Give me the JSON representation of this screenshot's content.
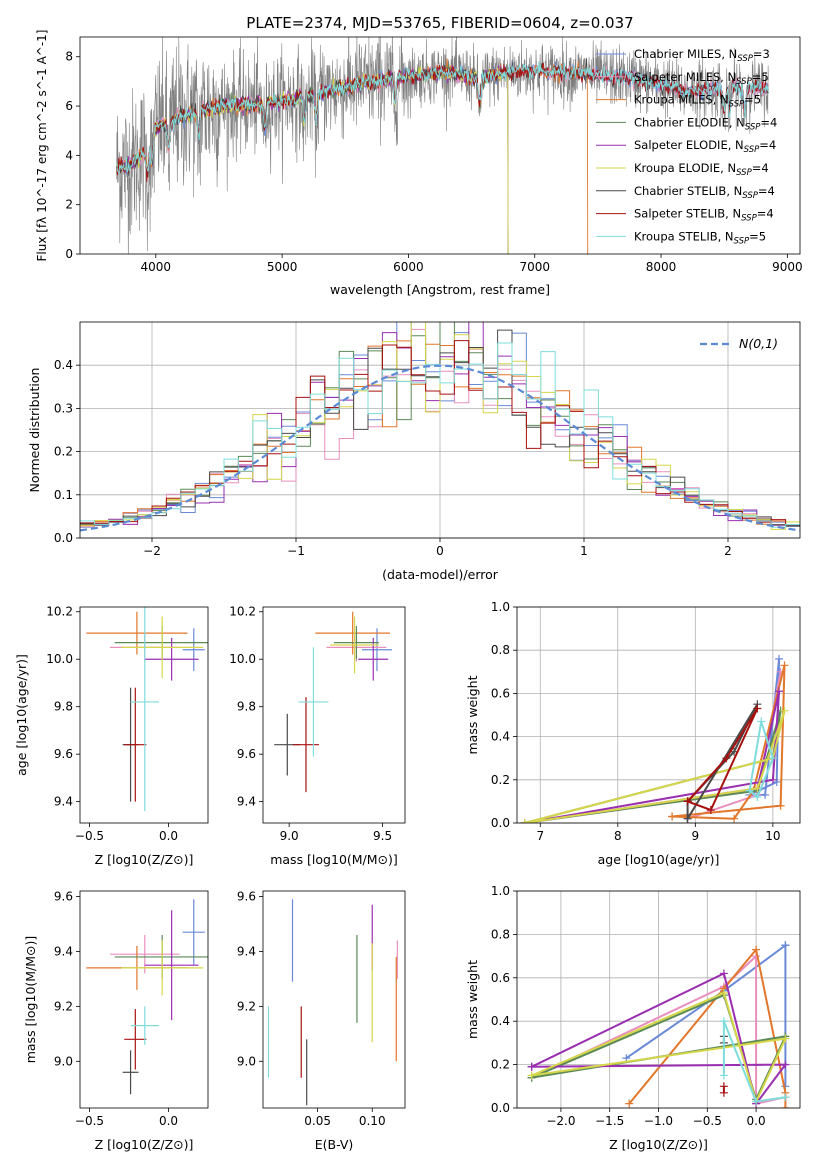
{
  "figure": {
    "title": "PLATE=2374, MJD=53765, FIBERID=0604, z=0.037"
  },
  "series": [
    {
      "name": "Chabrier MILES, N_SSP=3",
      "color": "#6a8ad8"
    },
    {
      "name": "Salpeter MILES, N_SSP=5",
      "color": "#e88fbf"
    },
    {
      "name": "Kroupa MILES, N_SSP=5",
      "color": "#e2762a"
    },
    {
      "name": "Chabrier ELODIE, N_SSP=4",
      "color": "#5a8a55"
    },
    {
      "name": "Salpeter ELODIE, N_SSP=4",
      "color": "#9a2fb0"
    },
    {
      "name": "Kroupa ELODIE, N_SSP=4",
      "color": "#d6d64a"
    },
    {
      "name": "Chabrier STELIB, N_SSP=4",
      "color": "#4a4a4a"
    },
    {
      "name": "Salpeter STELIB, N_SSP=4",
      "color": "#a81010"
    },
    {
      "name": "Kroupa STELIB, N_SSP=5",
      "color": "#7fdcdc"
    }
  ],
  "legend_entries": [
    {
      "base": "Chabrier MILES, N",
      "sub": "SSP",
      "tail": "=3"
    },
    {
      "base": "Salpeter MILES, N",
      "sub": "SSP",
      "tail": "=5"
    },
    {
      "base": "Kroupa MILES, N",
      "sub": "SSP",
      "tail": "=5"
    },
    {
      "base": "Chabrier ELODIE, N",
      "sub": "SSP",
      "tail": "=4"
    },
    {
      "base": "Salpeter ELODIE, N",
      "sub": "SSP",
      "tail": "=4"
    },
    {
      "base": "Kroupa ELODIE, N",
      "sub": "SSP",
      "tail": "=4"
    },
    {
      "base": "Chabrier STELIB, N",
      "sub": "SSP",
      "tail": "=4"
    },
    {
      "base": "Salpeter STELIB, N",
      "sub": "SSP",
      "tail": "=4"
    },
    {
      "base": "Kroupa STELIB, N",
      "sub": "SSP",
      "tail": "=5"
    }
  ],
  "chart_data": [
    {
      "id": "spectrum",
      "type": "line",
      "xlabel": "wavelength [Angstrom, rest frame]",
      "ylabel": "Flux [fλ 10^-17 erg cm^-2 s^-1 A^-1]",
      "xlim": [
        3400,
        9100
      ],
      "ylim": [
        0,
        8.8
      ],
      "xticks": [
        4000,
        5000,
        6000,
        7000,
        8000,
        9000
      ],
      "yticks": [
        0,
        2,
        4,
        6,
        8
      ],
      "grid": false,
      "legend": "top-right",
      "data_color": "#808080",
      "data_range": [
        3690,
        8850
      ],
      "model_ranges": [
        [
          3690,
          8850
        ],
        [
          3690,
          8850
        ],
        [
          3690,
          7420
        ],
        [
          3690,
          6790
        ],
        [
          3690,
          6790
        ],
        [
          3690,
          6790
        ],
        [
          3690,
          8850
        ],
        [
          3690,
          8850
        ],
        [
          3690,
          8850
        ]
      ],
      "continuum_knots": [
        [
          3690,
          3.5
        ],
        [
          3800,
          3.6
        ],
        [
          3930,
          4.2
        ],
        [
          4000,
          5.1
        ],
        [
          4200,
          5.6
        ],
        [
          4500,
          6.0
        ],
        [
          4860,
          6.1
        ],
        [
          5200,
          6.4
        ],
        [
          5600,
          6.9
        ],
        [
          6000,
          7.2
        ],
        [
          6300,
          7.4
        ],
        [
          6563,
          7.1
        ],
        [
          6800,
          7.4
        ],
        [
          7000,
          7.4
        ],
        [
          7400,
          7.3
        ],
        [
          7800,
          7.1
        ],
        [
          8200,
          6.6
        ],
        [
          8600,
          6.8
        ],
        [
          8850,
          6.7
        ]
      ]
    },
    {
      "id": "residuals",
      "type": "histogram",
      "xlabel": "(data-model)/error",
      "ylabel": "Normed distribution",
      "xlim": [
        -2.5,
        2.5
      ],
      "ylim": [
        0,
        0.5
      ],
      "xticks": [
        -2,
        -1,
        0,
        1,
        2
      ],
      "yticks": [
        0.0,
        0.1,
        0.2,
        0.3,
        0.4
      ],
      "bin_width": 0.1,
      "grid": true,
      "legend": "top-right",
      "reference_curve": {
        "label": "N(0,1)",
        "mean": 0,
        "sigma": 1,
        "color": "#5b8bd6"
      }
    },
    {
      "id": "age-vs-Z",
      "type": "errorbar",
      "xlabel": "Z [log10(Z/Z⊙)]",
      "ylabel": "age  [log10(age/yr)]",
      "xlim": [
        -0.56,
        0.25
      ],
      "ylim": [
        9.31,
        10.22
      ],
      "xticks": [
        -0.5,
        0.0
      ],
      "yticks": [
        9.4,
        9.6,
        9.8,
        10.0,
        10.2
      ],
      "points": [
        {
          "x": 0.16,
          "y": 10.04,
          "xerr": 0.07,
          "yerr": 0.09
        },
        {
          "x": -0.15,
          "y": 10.05,
          "xerr": 0.22,
          "yerr": 0.06
        },
        {
          "x": -0.2,
          "y": 10.11,
          "xerr": 0.32,
          "yerr": 0.09
        },
        {
          "x": -0.04,
          "y": 10.07,
          "xerr": 0.3,
          "yerr": 0.07
        },
        {
          "x": 0.02,
          "y": 10.0,
          "xerr": 0.17,
          "yerr": 0.09
        },
        {
          "x": -0.04,
          "y": 10.05,
          "xerr": 0.26,
          "yerr": 0.13
        },
        {
          "x": -0.24,
          "y": 9.64,
          "xerr": 0.05,
          "yerr": 0.24
        },
        {
          "x": -0.21,
          "y": 9.64,
          "xerr": 0.07,
          "yerr": 0.24
        },
        {
          "x": -0.15,
          "y": 9.82,
          "xerr": 0.09,
          "yerr": 0.46
        }
      ]
    },
    {
      "id": "age-vs-mass",
      "type": "errorbar",
      "xlabel": "mass [log10(M/M⊙)]",
      "ylabel": "",
      "xlim": [
        8.86,
        9.62
      ],
      "ylim": [
        9.31,
        10.22
      ],
      "xticks": [
        9.0,
        9.5
      ],
      "yticks": [
        9.4,
        9.6,
        9.8,
        10.0,
        10.2
      ],
      "points": [
        {
          "x": 9.47,
          "y": 10.04,
          "xerr": 0.08,
          "yerr": 0.09
        },
        {
          "x": 9.36,
          "y": 10.05,
          "xerr": 0.16,
          "yerr": 0.06
        },
        {
          "x": 9.34,
          "y": 10.11,
          "xerr": 0.2,
          "yerr": 0.09
        },
        {
          "x": 9.36,
          "y": 10.07,
          "xerr": 0.12,
          "yerr": 0.07
        },
        {
          "x": 9.45,
          "y": 10.0,
          "xerr": 0.08,
          "yerr": 0.09
        },
        {
          "x": 9.35,
          "y": 10.06,
          "xerr": 0.13,
          "yerr": 0.12
        },
        {
          "x": 8.99,
          "y": 9.64,
          "xerr": 0.07,
          "yerr": 0.13
        },
        {
          "x": 9.09,
          "y": 9.64,
          "xerr": 0.07,
          "yerr": 0.2
        },
        {
          "x": 9.13,
          "y": 9.82,
          "xerr": 0.08,
          "yerr": 0.23
        }
      ]
    },
    {
      "id": "weight-vs-age",
      "type": "line",
      "xlabel": "age  [log10(age/yr)]",
      "ylabel": "mass weight",
      "xlim": [
        6.7,
        10.35
      ],
      "ylim": [
        0.0,
        1.0
      ],
      "xticks": [
        7,
        8,
        9,
        10
      ],
      "yticks": [
        0.0,
        0.2,
        0.4,
        0.6,
        0.8,
        1.0
      ],
      "grid": true,
      "lines": [
        [
          [
            9.7,
            0.13
          ],
          [
            10.05,
            0.19
          ],
          [
            10.08,
            0.76
          ],
          [
            9.9,
            0.13
          ],
          [
            9.7,
            0.13
          ]
        ],
        [
          [
            8.9,
            0.02
          ],
          [
            9.8,
            0.13
          ],
          [
            10.1,
            0.7
          ],
          [
            9.8,
            0.13
          ],
          [
            8.9,
            0.02
          ]
        ],
        [
          [
            8.7,
            0.03
          ],
          [
            9.5,
            0.02
          ],
          [
            9.75,
            0.15
          ],
          [
            10.15,
            0.73
          ],
          [
            10.1,
            0.08
          ],
          [
            8.7,
            0.03
          ]
        ],
        [
          [
            6.8,
            0.0
          ],
          [
            9.8,
            0.15
          ],
          [
            10.1,
            0.52
          ],
          [
            10.0,
            0.3
          ],
          [
            6.8,
            0.0
          ]
        ],
        [
          [
            6.8,
            0.0
          ],
          [
            9.8,
            0.16
          ],
          [
            10.08,
            0.61
          ],
          [
            10.0,
            0.2
          ],
          [
            6.8,
            0.0
          ]
        ],
        [
          [
            6.8,
            0.0
          ],
          [
            9.8,
            0.16
          ],
          [
            10.15,
            0.52
          ],
          [
            10.0,
            0.3
          ],
          [
            6.8,
            0.0
          ]
        ],
        [
          [
            8.9,
            0.1
          ],
          [
            9.5,
            0.33
          ],
          [
            9.8,
            0.55
          ],
          [
            8.9,
            0.02
          ],
          [
            8.9,
            0.1
          ]
        ],
        [
          [
            8.9,
            0.1
          ],
          [
            9.4,
            0.3
          ],
          [
            9.8,
            0.53
          ],
          [
            9.2,
            0.06
          ],
          [
            8.9,
            0.1
          ]
        ],
        [
          [
            9.7,
            0.15
          ],
          [
            9.85,
            0.47
          ],
          [
            10.0,
            0.3
          ],
          [
            9.8,
            0.12
          ],
          [
            9.7,
            0.15
          ]
        ]
      ]
    },
    {
      "id": "mass-vs-Z",
      "type": "errorbar",
      "xlabel": "Z [log10(Z/Z⊙)]",
      "ylabel": "mass [log10(M/M⊙)]",
      "xlim": [
        -0.56,
        0.25
      ],
      "ylim": [
        8.83,
        9.62
      ],
      "xticks": [
        -0.5,
        0.0
      ],
      "yticks": [
        9.0,
        9.2,
        9.4,
        9.6
      ],
      "points": [
        {
          "x": 0.16,
          "y": 9.47,
          "xerr": 0.07,
          "yerr": 0.12
        },
        {
          "x": -0.15,
          "y": 9.39,
          "xerr": 0.22,
          "yerr": 0.07
        },
        {
          "x": -0.2,
          "y": 9.34,
          "xerr": 0.32,
          "yerr": 0.08
        },
        {
          "x": -0.04,
          "y": 9.38,
          "xerr": 0.3,
          "yerr": 0.08
        },
        {
          "x": 0.02,
          "y": 9.35,
          "xerr": 0.17,
          "yerr": 0.2
        },
        {
          "x": -0.04,
          "y": 9.34,
          "xerr": 0.26,
          "yerr": 0.1
        },
        {
          "x": -0.24,
          "y": 8.96,
          "xerr": 0.05,
          "yerr": 0.08
        },
        {
          "x": -0.21,
          "y": 9.08,
          "xerr": 0.07,
          "yerr": 0.11
        },
        {
          "x": -0.15,
          "y": 9.13,
          "xerr": 0.09,
          "yerr": 0.07
        }
      ]
    },
    {
      "id": "mass-vs-EBV",
      "type": "errorbar",
      "xlabel": "E(B-V)",
      "ylabel": "",
      "xlim": [
        0.0,
        0.13
      ],
      "ylim": [
        8.83,
        9.62
      ],
      "xticks": [
        0.05,
        0.1
      ],
      "yticks": [
        9.0,
        9.2,
        9.4,
        9.6
      ],
      "points": [
        {
          "x": 0.027,
          "y": 9.44,
          "xerr": 0.0,
          "yerr": 0.15
        },
        {
          "x": 0.123,
          "y": 9.37,
          "xerr": 0.0,
          "yerr": 0.07
        },
        {
          "x": 0.122,
          "y": 9.19,
          "xerr": 0.0,
          "yerr": 0.19
        },
        {
          "x": 0.086,
          "y": 9.3,
          "xerr": 0.0,
          "yerr": 0.16
        },
        {
          "x": 0.1,
          "y": 9.45,
          "xerr": 0.0,
          "yerr": 0.12
        },
        {
          "x": 0.1,
          "y": 9.25,
          "xerr": 0.0,
          "yerr": 0.18
        },
        {
          "x": 0.04,
          "y": 8.96,
          "xerr": 0.0,
          "yerr": 0.12
        },
        {
          "x": 0.035,
          "y": 9.07,
          "xerr": 0.0,
          "yerr": 0.13
        },
        {
          "x": 0.005,
          "y": 9.07,
          "xerr": 0.0,
          "yerr": 0.13
        }
      ]
    },
    {
      "id": "weight-vs-Z",
      "type": "line",
      "xlabel": "Z [log10(Z/Z⊙)]",
      "ylabel": "mass weight",
      "xlim": [
        -2.45,
        0.45
      ],
      "ylim": [
        0.0,
        1.0
      ],
      "xticks": [
        -2.0,
        -1.5,
        -1.0,
        -0.5,
        0.0
      ],
      "yticks": [
        0.0,
        0.2,
        0.4,
        0.6,
        0.8,
        1.0
      ],
      "grid": true,
      "lines": [
        [
          [
            -1.33,
            0.23
          ],
          [
            -0.33,
            0.54
          ],
          [
            0.3,
            0.75
          ],
          [
            0.3,
            0.1
          ],
          [
            0.3,
            0.75
          ]
        ],
        [
          [
            -2.3,
            0.14
          ],
          [
            -0.33,
            0.56
          ],
          [
            -0.0,
            0.7
          ],
          [
            0.0,
            0.02
          ],
          [
            0.3,
            0.05
          ]
        ],
        [
          [
            -1.3,
            0.02
          ],
          [
            -0.33,
            0.55
          ],
          [
            0.0,
            0.73
          ],
          [
            0.3,
            0.07
          ],
          [
            0.3,
            0.0
          ]
        ],
        [
          [
            -2.3,
            0.14
          ],
          [
            -0.33,
            0.52
          ],
          [
            0.0,
            0.04
          ],
          [
            0.3,
            0.33
          ],
          [
            -2.3,
            0.14
          ]
        ],
        [
          [
            -2.3,
            0.19
          ],
          [
            -0.33,
            0.62
          ],
          [
            0.0,
            0.02
          ],
          [
            0.3,
            0.2
          ],
          [
            -2.3,
            0.19
          ]
        ],
        [
          [
            -2.3,
            0.15
          ],
          [
            -0.33,
            0.53
          ],
          [
            0.0,
            0.03
          ],
          [
            0.3,
            0.32
          ],
          [
            -2.3,
            0.15
          ]
        ],
        [
          [
            -0.33,
            0.33
          ],
          [
            -0.33,
            0.3
          ]
        ],
        [
          [
            -0.33,
            0.1
          ],
          [
            -0.33,
            0.07
          ]
        ],
        [
          [
            -0.33,
            0.15
          ],
          [
            -0.33,
            0.4
          ],
          [
            0.0,
            0.03
          ],
          [
            0.3,
            0.05
          ]
        ]
      ]
    }
  ]
}
